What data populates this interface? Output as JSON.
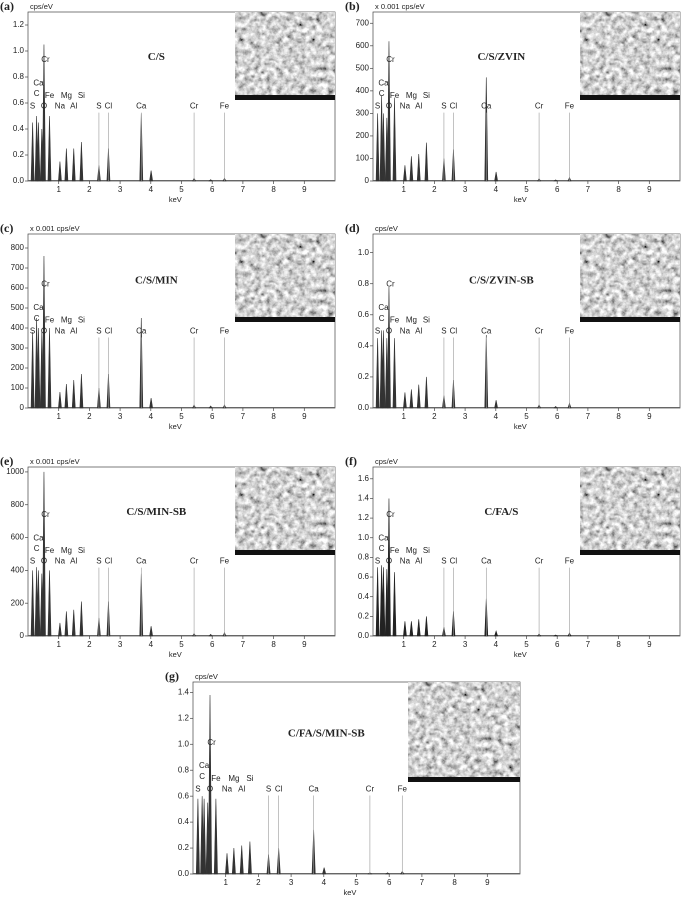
{
  "chart_data": [
    {
      "type": "area",
      "panel_label": "(a)",
      "title": "C/S",
      "y_unit": "cps/eV",
      "xlabel": "keV",
      "color": "#333333",
      "x": [
        0.15,
        0.28,
        0.34,
        0.45,
        0.52,
        0.7,
        1.04,
        1.25,
        1.49,
        1.74,
        2.31,
        2.62,
        3.69,
        4.01,
        5.41,
        5.95,
        6.4
      ],
      "values": [
        0.45,
        0.5,
        0.45,
        0.4,
        1.05,
        0.5,
        0.15,
        0.25,
        0.25,
        0.3,
        0.12,
        0.25,
        0.52,
        0.08,
        0.02,
        0.01,
        0.02
      ],
      "xlim": [
        0,
        10
      ],
      "xticks": [
        1,
        2,
        3,
        4,
        5,
        6,
        7,
        8,
        9
      ],
      "ylim": [
        0,
        1.3
      ],
      "yticks": [
        {
          "value": 0,
          "label": "0.0"
        },
        0.2,
        0.4,
        0.6,
        0.8,
        {
          "value": 1,
          "label": "1.0"
        },
        1.2
      ],
      "annotations": [
        {
          "text": "Cr",
          "x": 0.57
        },
        {
          "text": "Ca",
          "x": 0.34
        },
        {
          "text": "C",
          "x": 0.28
        },
        {
          "text": "Fe",
          "x": 0.7
        },
        {
          "text": "Mg",
          "x": 1.25
        },
        {
          "text": "Si",
          "x": 1.74
        },
        {
          "text": "S",
          "x": 0.15
        },
        {
          "text": "O",
          "x": 0.52
        },
        {
          "text": "Na",
          "x": 1.04
        },
        {
          "text": "Al",
          "x": 1.49
        },
        {
          "text": "S",
          "x": 2.31
        },
        {
          "text": "Cl",
          "x": 2.62
        },
        {
          "text": "Ca",
          "x": 3.69
        },
        {
          "text": "Cr",
          "x": 5.41
        },
        {
          "text": "Fe",
          "x": 6.4
        }
      ]
    },
    {
      "type": "area",
      "panel_label": "(b)",
      "title": "C/S/ZVIN",
      "y_unit": "x 0.001 cps/eV",
      "xlabel": "keV",
      "color": "#333333",
      "x": [
        0.15,
        0.28,
        0.34,
        0.45,
        0.52,
        0.7,
        1.04,
        1.25,
        1.49,
        1.74,
        2.31,
        2.62,
        3.69,
        4.01,
        5.41,
        5.95,
        6.4
      ],
      "values": [
        300,
        380,
        300,
        280,
        620,
        370,
        70,
        110,
        120,
        170,
        100,
        140,
        460,
        40,
        10,
        5,
        15
      ],
      "xlim": [
        0,
        10
      ],
      "xticks": [
        1,
        2,
        3,
        4,
        5,
        6,
        7,
        8,
        9
      ],
      "ylim": [
        0,
        750
      ],
      "yticks": [
        0,
        100,
        200,
        300,
        400,
        500,
        600,
        700
      ],
      "annotations": [
        {
          "text": "Cr",
          "x": 0.57
        },
        {
          "text": "Ca",
          "x": 0.34
        },
        {
          "text": "C",
          "x": 0.28
        },
        {
          "text": "Fe",
          "x": 0.7
        },
        {
          "text": "Mg",
          "x": 1.25
        },
        {
          "text": "Si",
          "x": 1.74
        },
        {
          "text": "S",
          "x": 0.15
        },
        {
          "text": "O",
          "x": 0.52
        },
        {
          "text": "Na",
          "x": 1.04
        },
        {
          "text": "Al",
          "x": 1.49
        },
        {
          "text": "S",
          "x": 2.31
        },
        {
          "text": "Cl",
          "x": 2.62
        },
        {
          "text": "Ca",
          "x": 3.69
        },
        {
          "text": "Cr",
          "x": 5.41
        },
        {
          "text": "Fe",
          "x": 6.4
        }
      ]
    },
    {
      "type": "area",
      "panel_label": "(c)",
      "title": "C/S/MIN",
      "y_unit": "x 0.001 cps/eV",
      "xlabel": "keV",
      "color": "#333333",
      "x": [
        0.15,
        0.28,
        0.34,
        0.45,
        0.52,
        0.7,
        1.04,
        1.25,
        1.49,
        1.74,
        2.31,
        2.62,
        3.69,
        4.01,
        5.41,
        5.95,
        6.4
      ],
      "values": [
        380,
        450,
        400,
        380,
        760,
        400,
        80,
        120,
        140,
        170,
        100,
        170,
        450,
        50,
        15,
        10,
        15
      ],
      "xlim": [
        0,
        10
      ],
      "xticks": [
        1,
        2,
        3,
        4,
        5,
        6,
        7,
        8,
        9
      ],
      "ylim": [
        0,
        870
      ],
      "yticks": [
        0,
        100,
        200,
        300,
        400,
        500,
        600,
        700,
        800
      ],
      "annotations": [
        {
          "text": "Cr",
          "x": 0.57
        },
        {
          "text": "Ca",
          "x": 0.34
        },
        {
          "text": "C",
          "x": 0.28
        },
        {
          "text": "Fe",
          "x": 0.7
        },
        {
          "text": "Mg",
          "x": 1.25
        },
        {
          "text": "Si",
          "x": 1.74
        },
        {
          "text": "S",
          "x": 0.15
        },
        {
          "text": "O",
          "x": 0.52
        },
        {
          "text": "Na",
          "x": 1.04
        },
        {
          "text": "Al",
          "x": 1.49
        },
        {
          "text": "S",
          "x": 2.31
        },
        {
          "text": "Cl",
          "x": 2.62
        },
        {
          "text": "Ca",
          "x": 3.69
        },
        {
          "text": "Cr",
          "x": 5.41
        },
        {
          "text": "Fe",
          "x": 6.4
        }
      ]
    },
    {
      "type": "area",
      "panel_label": "(d)",
      "title": "C/S/ZVIN-SB",
      "y_unit": "cps/eV",
      "xlabel": "keV",
      "color": "#333333",
      "x": [
        0.15,
        0.28,
        0.34,
        0.45,
        0.52,
        0.7,
        1.04,
        1.25,
        1.49,
        1.74,
        2.31,
        2.62,
        3.69,
        4.01,
        5.41,
        5.95,
        6.4
      ],
      "values": [
        0.45,
        0.5,
        0.5,
        0.45,
        0.78,
        0.45,
        0.1,
        0.12,
        0.15,
        0.2,
        0.08,
        0.18,
        0.47,
        0.05,
        0.02,
        0.01,
        0.03
      ],
      "xlim": [
        0,
        10
      ],
      "xticks": [
        1,
        2,
        3,
        4,
        5,
        6,
        7,
        8,
        9
      ],
      "ylim": [
        0,
        1.12
      ],
      "yticks": [
        {
          "value": 0,
          "label": "0.0"
        },
        0.2,
        0.4,
        0.6,
        0.8,
        {
          "value": 1,
          "label": "1.0"
        }
      ],
      "annotations": [
        {
          "text": "Cr",
          "x": 0.57
        },
        {
          "text": "Ca",
          "x": 0.34
        },
        {
          "text": "C",
          "x": 0.28
        },
        {
          "text": "Fe",
          "x": 0.7
        },
        {
          "text": "Mg",
          "x": 1.25
        },
        {
          "text": "Si",
          "x": 1.74
        },
        {
          "text": "S",
          "x": 0.15
        },
        {
          "text": "O",
          "x": 0.52
        },
        {
          "text": "Na",
          "x": 1.04
        },
        {
          "text": "Al",
          "x": 1.49
        },
        {
          "text": "S",
          "x": 2.31
        },
        {
          "text": "Cl",
          "x": 2.62
        },
        {
          "text": "Ca",
          "x": 3.69
        },
        {
          "text": "Cr",
          "x": 5.41
        },
        {
          "text": "Fe",
          "x": 6.4
        }
      ]
    },
    {
      "type": "area",
      "panel_label": "(e)",
      "title": "C/S/MIN-SB",
      "y_unit": "x 0.001 cps/eV",
      "xlabel": "keV",
      "color": "#333333",
      "x": [
        0.15,
        0.28,
        0.34,
        0.45,
        0.52,
        0.7,
        1.04,
        1.25,
        1.49,
        1.74,
        2.31,
        2.62,
        3.69,
        4.01,
        5.41,
        5.95,
        6.4
      ],
      "values": [
        400,
        420,
        400,
        380,
        1000,
        400,
        80,
        150,
        160,
        210,
        110,
        210,
        380,
        60,
        15,
        10,
        20
      ],
      "xlim": [
        0,
        10
      ],
      "xticks": [
        1,
        2,
        3,
        4,
        5,
        6,
        7,
        8,
        9
      ],
      "ylim": [
        0,
        1030
      ],
      "yticks": [
        0,
        200,
        400,
        600,
        800,
        1000
      ],
      "annotations": [
        {
          "text": "Cr",
          "x": 0.57
        },
        {
          "text": "Ca",
          "x": 0.34
        },
        {
          "text": "C",
          "x": 0.28
        },
        {
          "text": "Fe",
          "x": 0.7
        },
        {
          "text": "Mg",
          "x": 1.25
        },
        {
          "text": "Si",
          "x": 1.74
        },
        {
          "text": "S",
          "x": 0.15
        },
        {
          "text": "O",
          "x": 0.52
        },
        {
          "text": "Na",
          "x": 1.04
        },
        {
          "text": "Al",
          "x": 1.49
        },
        {
          "text": "S",
          "x": 2.31
        },
        {
          "text": "Cl",
          "x": 2.62
        },
        {
          "text": "Ca",
          "x": 3.69
        },
        {
          "text": "Cr",
          "x": 5.41
        },
        {
          "text": "Fe",
          "x": 6.4
        }
      ]
    },
    {
      "type": "area",
      "panel_label": "(f)",
      "title": "C/FA/S",
      "y_unit": "cps/eV",
      "xlabel": "keV",
      "color": "#222222",
      "x": [
        0.15,
        0.28,
        0.34,
        0.45,
        0.52,
        0.7,
        1.04,
        1.25,
        1.49,
        1.74,
        2.31,
        2.62,
        3.69,
        4.01,
        5.41,
        5.95,
        6.4
      ],
      "values": [
        0.7,
        0.72,
        0.7,
        0.68,
        1.4,
        0.65,
        0.15,
        0.15,
        0.17,
        0.2,
        0.09,
        0.25,
        0.38,
        0.05,
        0.02,
        0.01,
        0.03
      ],
      "xlim": [
        0,
        10
      ],
      "xticks": [
        1,
        2,
        3,
        4,
        5,
        6,
        7,
        8,
        9
      ],
      "ylim": [
        0,
        1.72
      ],
      "yticks": [
        {
          "value": 0,
          "label": "0.0"
        },
        0.2,
        0.4,
        0.6,
        0.8,
        {
          "value": 1,
          "label": "1.0"
        },
        1.2,
        1.4,
        1.6
      ],
      "annotations": [
        {
          "text": "Cr",
          "x": 0.57
        },
        {
          "text": "Ca",
          "x": 0.34
        },
        {
          "text": "C",
          "x": 0.28
        },
        {
          "text": "Fe",
          "x": 0.7
        },
        {
          "text": "Mg",
          "x": 1.25
        },
        {
          "text": "Si",
          "x": 1.74
        },
        {
          "text": "S",
          "x": 0.15
        },
        {
          "text": "O",
          "x": 0.52
        },
        {
          "text": "Na",
          "x": 1.04
        },
        {
          "text": "Al",
          "x": 1.49
        },
        {
          "text": "S",
          "x": 2.31
        },
        {
          "text": "Cl",
          "x": 2.62
        },
        {
          "text": "Ca",
          "x": 3.69
        },
        {
          "text": "Cr",
          "x": 5.41
        },
        {
          "text": "Fe",
          "x": 6.4
        }
      ]
    },
    {
      "type": "area",
      "panel_label": "(g)",
      "title": "C/FA/S/MIN-SB",
      "y_unit": "cps/eV",
      "xlabel": "keV",
      "color": "#333333",
      "x": [
        0.15,
        0.28,
        0.34,
        0.45,
        0.52,
        0.7,
        1.04,
        1.25,
        1.49,
        1.74,
        2.31,
        2.62,
        3.69,
        4.01,
        5.41,
        5.95,
        6.4
      ],
      "values": [
        0.58,
        0.6,
        0.58,
        0.55,
        1.38,
        0.58,
        0.16,
        0.2,
        0.22,
        0.25,
        0.15,
        0.2,
        0.34,
        0.05,
        0.01,
        0.01,
        0.02
      ],
      "xlim": [
        0,
        10
      ],
      "xticks": [
        1,
        2,
        3,
        4,
        5,
        6,
        7,
        8,
        9
      ],
      "ylim": [
        0,
        1.48
      ],
      "yticks": [
        {
          "value": 0,
          "label": "0.0"
        },
        0.2,
        0.4,
        0.6,
        0.8,
        {
          "value": 1,
          "label": "1.0"
        },
        1.2,
        1.4
      ],
      "annotations": [
        {
          "text": "Cr",
          "x": 0.57
        },
        {
          "text": "Ca",
          "x": 0.34
        },
        {
          "text": "C",
          "x": 0.28
        },
        {
          "text": "Fe",
          "x": 0.7
        },
        {
          "text": "Mg",
          "x": 1.25
        },
        {
          "text": "Si",
          "x": 1.74
        },
        {
          "text": "S",
          "x": 0.15
        },
        {
          "text": "O",
          "x": 0.52
        },
        {
          "text": "Na",
          "x": 1.04
        },
        {
          "text": "Al",
          "x": 1.49
        },
        {
          "text": "S",
          "x": 2.31
        },
        {
          "text": "Cl",
          "x": 2.62
        },
        {
          "text": "Ca",
          "x": 3.69
        },
        {
          "text": "Cr",
          "x": 5.41
        },
        {
          "text": "Fe",
          "x": 6.4
        }
      ]
    }
  ]
}
